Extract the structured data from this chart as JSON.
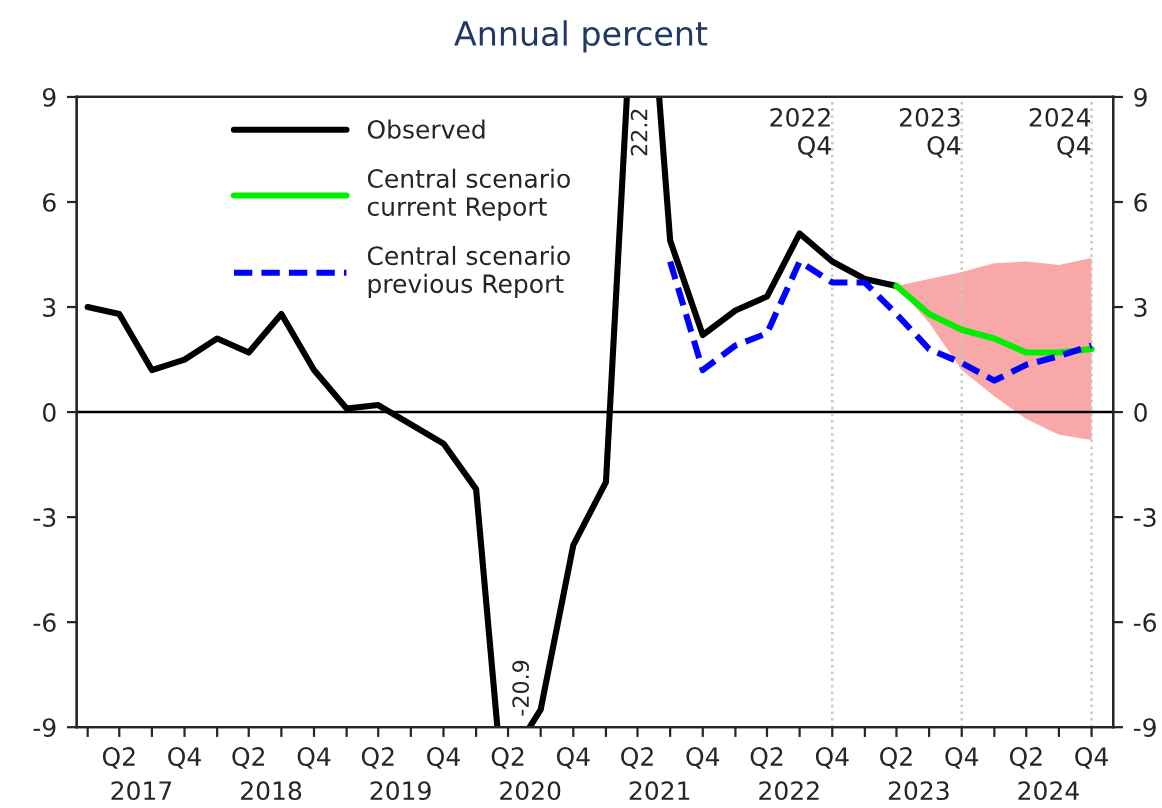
{
  "chart_data": {
    "type": "line",
    "title": "Annual percent",
    "series": [
      {
        "name": "Observed",
        "color": "#000000",
        "line_style": "solid",
        "x": [
          "2017-02",
          "2017-05",
          "2017-08",
          "2017-11",
          "2018-02",
          "2018-05",
          "2018-08",
          "2018-11",
          "2019-02",
          "2019-05",
          "2019-08",
          "2019-11",
          "2020-02",
          "2020-04",
          "2020-06",
          "2020-07",
          "2020-08",
          "2020-11",
          "2021-02",
          "2021-04",
          "2021-05",
          "2021-07",
          "2021-08",
          "2021-11",
          "2022-02",
          "2022-05",
          "2022-08",
          "2022-11",
          "2023-02",
          "2023-05"
        ],
        "values": [
          3.0,
          2.8,
          1.2,
          1.5,
          2.1,
          1.7,
          2.8,
          1.2,
          0.1,
          0.2,
          -0.35,
          -0.9,
          -2.2,
          -9,
          null,
          -9,
          -8.5,
          -3.8,
          -2.0,
          9,
          null,
          9,
          4.9,
          2.2,
          2.9,
          3.3,
          5.1,
          4.3,
          3.8,
          3.6
        ]
      },
      {
        "name": "Central scenario\ncurrent Report",
        "color": "#00ee00",
        "line_style": "solid",
        "x": [
          "2023-05",
          "2023-08",
          "2023-11",
          "2024-02",
          "2024-05",
          "2024-08",
          "2024-11"
        ],
        "values": [
          3.6,
          2.8,
          2.35,
          2.1,
          1.7,
          1.7,
          1.8
        ],
        "lower": [
          3.6,
          2.55,
          1.2,
          0.45,
          -0.2,
          -0.65,
          -0.8
        ],
        "upper": [
          3.6,
          3.8,
          4.0,
          4.25,
          4.3,
          4.2,
          4.4
        ]
      },
      {
        "name": "Central scenario\nprevious Report",
        "color": "#0000ff",
        "line_style": "dashed",
        "x": [
          "2021-08",
          "2021-11",
          "2022-02",
          "2022-05",
          "2022-08",
          "2022-11",
          "2023-02",
          "2023-05",
          "2023-08",
          "2023-11",
          "2024-02",
          "2024-05",
          "2024-08",
          "2024-11"
        ],
        "values": [
          4.3,
          1.2,
          1.9,
          2.25,
          4.3,
          3.7,
          3.7,
          2.8,
          1.8,
          1.4,
          0.9,
          1.35,
          1.6,
          1.9
        ]
      }
    ],
    "xlim": [
      "2017-01",
      "2025-01"
    ],
    "xticks": [
      {
        "value": "2017-02",
        "label": null
      },
      {
        "value": "2017-05",
        "label": "Q2"
      },
      {
        "value": "2017-08",
        "label": null
      },
      {
        "value": "2017-11",
        "label": "Q4"
      },
      {
        "value": "2018-02",
        "label": null
      },
      {
        "value": "2018-05",
        "label": "Q2"
      },
      {
        "value": "2018-08",
        "label": null
      },
      {
        "value": "2018-11",
        "label": "Q4"
      },
      {
        "value": "2019-02",
        "label": null
      },
      {
        "value": "2019-05",
        "label": "Q2"
      },
      {
        "value": "2019-08",
        "label": null
      },
      {
        "value": "2019-11",
        "label": "Q4"
      },
      {
        "value": "2020-02",
        "label": null
      },
      {
        "value": "2020-05",
        "label": "Q2"
      },
      {
        "value": "2020-08",
        "label": null
      },
      {
        "value": "2020-11",
        "label": "Q4"
      },
      {
        "value": "2021-02",
        "label": null
      },
      {
        "value": "2021-05",
        "label": "Q2"
      },
      {
        "value": "2021-08",
        "label": null
      },
      {
        "value": "2021-11",
        "label": "Q4"
      },
      {
        "value": "2022-02",
        "label": null
      },
      {
        "value": "2022-05",
        "label": "Q2"
      },
      {
        "value": "2022-08",
        "label": null
      },
      {
        "value": "2022-11",
        "label": "Q4"
      },
      {
        "value": "2023-02",
        "label": null
      },
      {
        "value": "2023-05",
        "label": "Q2"
      },
      {
        "value": "2023-08",
        "label": null
      },
      {
        "value": "2023-11",
        "label": "Q4"
      },
      {
        "value": "2024-02",
        "label": null
      },
      {
        "value": "2024-05",
        "label": "Q2"
      },
      {
        "value": "2024-08",
        "label": null
      },
      {
        "value": "2024-11",
        "label": "Q4"
      }
    ],
    "ylim": [
      -9,
      9
    ],
    "yticks": [
      -9,
      -6,
      -3,
      0,
      3,
      6,
      9
    ],
    "y2lim": [
      -9,
      9
    ],
    "y2ticks": [
      -9,
      -6,
      -3,
      0,
      3,
      6,
      9
    ],
    "ref_lines": [
      {
        "axis": "y",
        "value": 0,
        "color": "#000000",
        "line_style": "solid"
      },
      {
        "axis": "x",
        "value": "2022-11",
        "label": "2022\nQ4",
        "color": "#c8c8c8",
        "line_style": "dotted"
      },
      {
        "axis": "x",
        "value": "2023-11",
        "label": "2023\nQ4",
        "color": "#c8c8c8",
        "line_style": "dotted"
      },
      {
        "axis": "x",
        "value": "2024-11",
        "label": "2024\nQ4",
        "color": "#c8c8c8",
        "line_style": "dotted"
      }
    ],
    "annotations": [
      "-20.9",
      "22.2",
      "2017",
      "2018",
      "2019",
      "2020",
      "2021",
      "2022",
      "2023",
      "2024"
    ],
    "legend": "top left",
    "grid": false
  }
}
